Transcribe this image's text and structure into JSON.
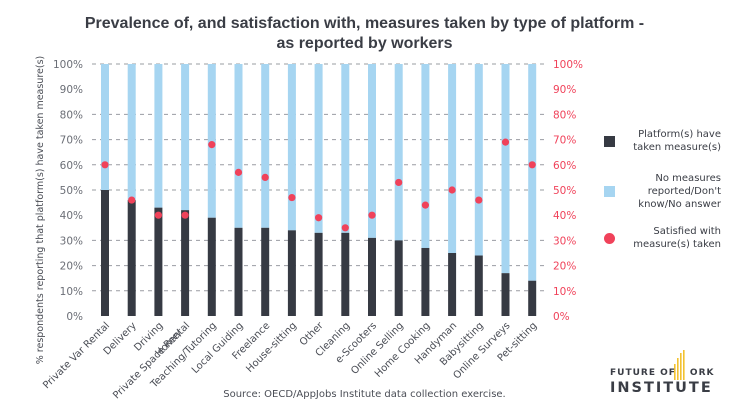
{
  "chart_data": {
    "type": "bar",
    "stacked": true,
    "title": "Prevalence of, and satisfaction with, measures taken by type of platform - as reported by workers",
    "title_lines": [
      "Prevalence of, and satisfaction with, measures taken by type of platform -",
      "as reported by workers"
    ],
    "xlabel": "",
    "ylabel": "% respondents reporting that platform(s) have taken measure(s)",
    "ylim": [
      0,
      100
    ],
    "y_ticks": [
      "0%",
      "10%",
      "20%",
      "30%",
      "40%",
      "50%",
      "60%",
      "70%",
      "80%",
      "90%",
      "100%"
    ],
    "y2lim": [
      0,
      100
    ],
    "y2_ticks": [
      "0%",
      "10%",
      "20%",
      "30%",
      "40%",
      "50%",
      "60%",
      "70%",
      "80%",
      "90%",
      "100%"
    ],
    "gridlines_at": [
      10,
      20,
      30,
      50,
      60,
      70,
      80,
      100
    ],
    "grid": true,
    "categories": [
      "Private Var Rental",
      "Delivery",
      "Driving",
      "Home/ Private Space Rental",
      "Teaching/Tutoring",
      "Local Guiding",
      "Freelance",
      "House-sitting",
      "Other",
      "Cleaning",
      "e-Scooters",
      "Online Selling",
      "Home Cooking",
      "Handyman",
      "Babysitting",
      "Online Surveys",
      "Pet-sitting"
    ],
    "category_label_lines": [
      [
        "Private Var Rental"
      ],
      [
        "Delivery"
      ],
      [
        "Driving"
      ],
      [
        "Home/",
        "Private Space Rental"
      ],
      [
        "Teaching/Tutoring"
      ],
      [
        "Local Guiding"
      ],
      [
        "Freelance"
      ],
      [
        "House-sitting"
      ],
      [
        "Other"
      ],
      [
        "Cleaning"
      ],
      [
        "e-Scooters"
      ],
      [
        "Online Selling"
      ],
      [
        "Home Cooking"
      ],
      [
        "Handyman"
      ],
      [
        "Babysitting"
      ],
      [
        "Online Surveys"
      ],
      [
        "Pet-sitting"
      ]
    ],
    "series": [
      {
        "name": "Platform(s) have taken measure(s)",
        "type": "bar",
        "color": "#363a43",
        "values": [
          50,
          46,
          43,
          42,
          39,
          35,
          35,
          34,
          33,
          33,
          31,
          30,
          27,
          25,
          24,
          17,
          14
        ]
      },
      {
        "name": "No measures reported/Don't know/No answer",
        "type": "bar",
        "color": "#a6d5f1",
        "values": [
          50,
          54,
          57,
          58,
          61,
          65,
          65,
          66,
          67,
          67,
          69,
          70,
          73,
          75,
          76,
          83,
          86
        ]
      },
      {
        "name": "Satisfied with measure(s) taken",
        "type": "scatter",
        "axis": "right",
        "color": "#f0425a",
        "values": [
          60,
          46,
          40,
          40,
          68,
          57,
          55,
          47,
          39,
          35,
          40,
          53,
          44,
          50,
          46,
          69,
          60
        ]
      }
    ],
    "legend_position": "right"
  },
  "legend": {
    "items": [
      {
        "label": "Platform(s) have taken measure(s)",
        "lines": [
          "Platform(s) have",
          "taken measure(s)"
        ],
        "color": "#363a43"
      },
      {
        "label": "No measures reported/Don't know/No answer",
        "lines": [
          "No measures",
          "reported/Don't",
          "know/No answer"
        ],
        "color": "#a6d5f1"
      },
      {
        "label": "Satisfied with measure(s) taken",
        "lines": [
          "Satisfied with",
          "measure(s) taken"
        ],
        "color": "#f0425a"
      }
    ]
  },
  "source": "Source: OECD/AppJobs Institute data collection exercise.",
  "logo": {
    "line1": "FUTURE OF",
    "line1_suffix": "ORK",
    "line2": "INSTITUTE",
    "accent": "#f2c230"
  }
}
